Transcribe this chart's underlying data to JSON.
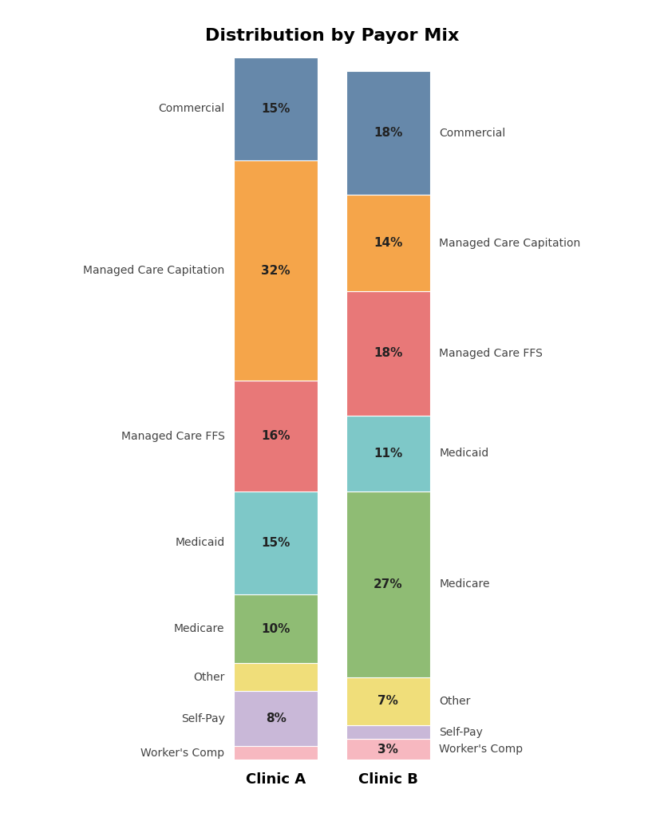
{
  "title": "Distribution by Payor Mix",
  "clinics": [
    "Clinic A",
    "Clinic B"
  ],
  "categories": [
    "Worker's Comp",
    "Self-Pay",
    "Other",
    "Medicare",
    "Medicaid",
    "Managed Care FFS",
    "Managed Care Capitation",
    "Commercial"
  ],
  "values": {
    "Clinic A": [
      2,
      8,
      4,
      10,
      15,
      16,
      32,
      15
    ],
    "Clinic B": [
      3,
      2,
      7,
      27,
      11,
      18,
      14,
      18
    ]
  },
  "colors": [
    "#f7b8c0",
    "#c9b8d8",
    "#f0de7a",
    "#8fbc74",
    "#7ec8c8",
    "#e87878",
    "#f5a54a",
    "#6688aa"
  ],
  "labels": {
    "Clinic A": {
      "Worker's Comp": null,
      "Self-Pay": "8%",
      "Other": null,
      "Medicare": "10%",
      "Medicaid": "15%",
      "Managed Care FFS": "16%",
      "Managed Care Capitation": "32%",
      "Commercial": "15%"
    },
    "Clinic B": {
      "Worker's Comp": "3%",
      "Self-Pay": null,
      "Other": "7%",
      "Medicare": "27%",
      "Medicaid": "11%",
      "Managed Care FFS": "18%",
      "Managed Care Capitation": "14%",
      "Commercial": "18%"
    }
  },
  "left_annotations": [
    "Commercial",
    "Managed Care Capitation",
    "Managed Care FFS",
    "Medicaid",
    "Medicare",
    "Other",
    "Self-Pay",
    "Worker's Comp"
  ],
  "right_annotations": [
    "Commercial",
    "Managed Care Capitation",
    "Managed Care FFS",
    "Medicaid",
    "Medicare",
    "Other",
    "Self-Pay",
    "Worker's Comp"
  ],
  "background_color": "#ffffff",
  "bar_width": 0.75,
  "title_fontsize": 16,
  "label_fontsize": 10,
  "pct_fontsize": 11
}
